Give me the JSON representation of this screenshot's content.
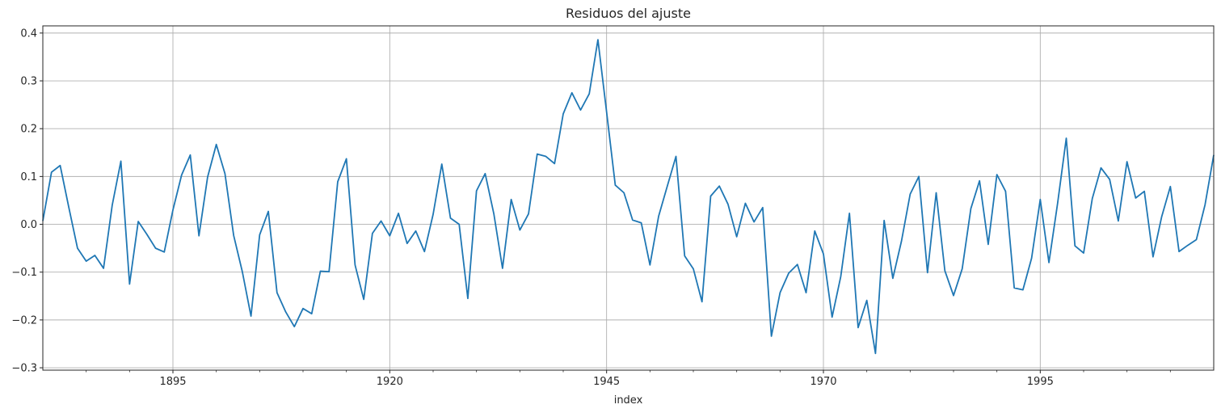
{
  "chart_data": {
    "type": "line",
    "title": "Residuos del ajuste",
    "xlabel": "index",
    "ylabel": "",
    "xlim": [
      1880,
      2015
    ],
    "ylim": [
      -0.305,
      0.415
    ],
    "grid": true,
    "legend": "none",
    "line_color": "#1f77b4",
    "x_ticks": [
      1895,
      1920,
      1945,
      1970,
      1995
    ],
    "y_ticks": [
      -0.3,
      -0.2,
      -0.1,
      0.0,
      0.1,
      0.2,
      0.3,
      0.4
    ],
    "y_tick_labels": [
      "−0.3",
      "−0.2",
      "−0.1",
      "0.0",
      "0.1",
      "0.2",
      "0.3",
      "0.4"
    ],
    "x_tick_labels": [
      "1895",
      "1920",
      "1945",
      "1970",
      "1995"
    ],
    "series": [
      {
        "x_start": 1880,
        "values": [
          0.007,
          0.109,
          0.123,
          0.035,
          -0.05,
          -0.077,
          -0.065,
          -0.092,
          0.04,
          0.132,
          -0.125,
          0.006,
          -0.021,
          -0.05,
          -0.058,
          0.03,
          0.103,
          0.145,
          -0.024,
          0.099,
          0.167,
          0.106,
          -0.023,
          -0.099,
          -0.192,
          -0.022,
          0.027,
          -0.143,
          -0.183,
          -0.214,
          -0.176,
          -0.187,
          -0.098,
          -0.099,
          0.089,
          0.137,
          -0.085,
          -0.157,
          -0.019,
          0.007,
          -0.024,
          0.023,
          -0.04,
          -0.014,
          -0.057,
          0.021,
          0.126,
          0.013,
          0.0,
          -0.155,
          0.07,
          0.106,
          0.022,
          -0.092,
          0.052,
          -0.012,
          0.022,
          0.147,
          0.142,
          0.127,
          0.231,
          0.275,
          0.239,
          0.273,
          0.386,
          0.235,
          0.082,
          0.066,
          0.009,
          0.003,
          -0.085,
          0.017,
          0.08,
          0.142,
          -0.066,
          -0.093,
          -0.162,
          0.059,
          0.08,
          0.042,
          -0.026,
          0.044,
          0.005,
          0.035,
          -0.234,
          -0.143,
          -0.102,
          -0.084,
          -0.143,
          -0.014,
          -0.062,
          -0.194,
          -0.109,
          0.023,
          -0.216,
          -0.159,
          -0.27,
          0.008,
          -0.113,
          -0.035,
          0.063,
          0.1,
          -0.101,
          0.066,
          -0.097,
          -0.149,
          -0.093,
          0.033,
          0.091,
          -0.042,
          0.104,
          0.069,
          -0.133,
          -0.137,
          -0.071,
          0.052,
          -0.08,
          0.044,
          0.18,
          -0.045,
          -0.06,
          0.054,
          0.118,
          0.094,
          0.007,
          0.131,
          0.055,
          0.069,
          -0.068,
          0.016,
          0.079,
          -0.057,
          -0.044,
          -0.032,
          0.041,
          0.145
        ]
      }
    ]
  }
}
